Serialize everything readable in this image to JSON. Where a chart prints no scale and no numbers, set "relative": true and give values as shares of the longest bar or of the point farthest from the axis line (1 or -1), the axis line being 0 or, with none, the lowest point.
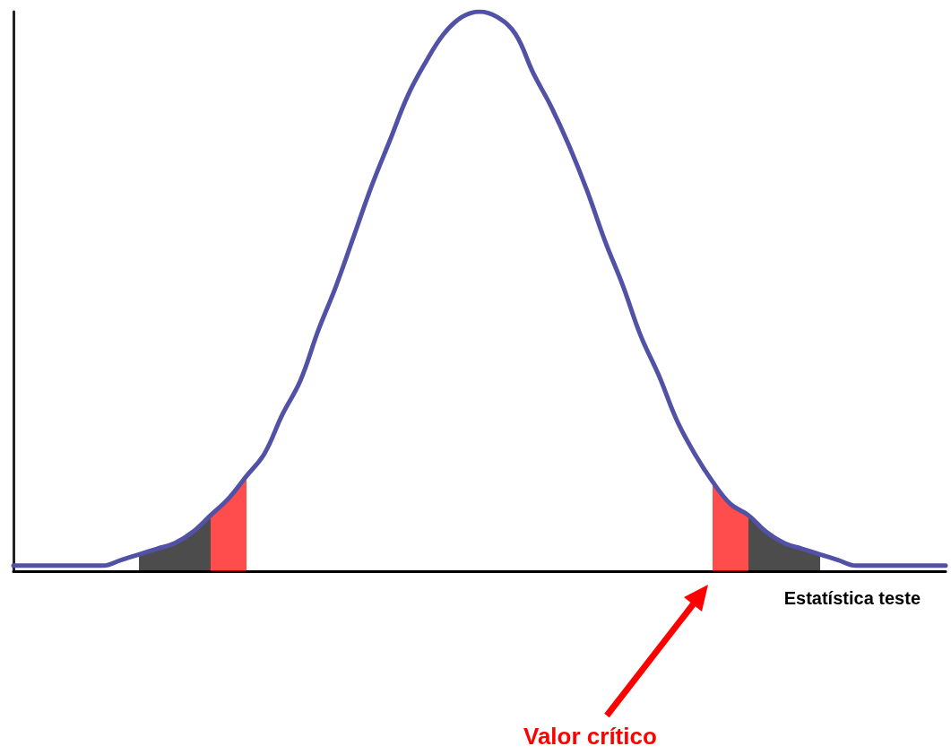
{
  "chart_data": {
    "type": "line",
    "relative": true,
    "xlabel": "Estatística teste",
    "annotations": [
      "Valor crítico"
    ],
    "marker": "none",
    "categories": [
      null,
      null,
      null,
      null,
      null,
      null,
      null,
      null,
      null,
      null,
      null,
      null,
      null,
      null,
      null,
      null,
      null,
      null,
      null,
      null,
      null,
      null,
      null,
      null,
      null,
      null,
      null,
      null,
      null,
      null,
      null,
      null,
      null,
      null,
      null,
      null,
      null,
      null,
      null,
      null,
      null,
      null,
      null,
      null,
      null,
      null,
      null,
      null,
      null,
      null,
      null,
      null,
      null
    ],
    "series": [
      {
        "type": "area",
        "color": "#ff0000",
        "values": [
          null,
          null,
          null,
          null,
          null,
          null,
          null,
          null,
          null,
          null,
          null,
          0.1,
          0.13,
          0.17,
          null,
          null,
          null,
          null,
          null,
          null,
          null,
          null,
          null,
          null,
          null,
          null,
          null,
          null,
          null,
          null,
          null,
          null,
          null,
          null,
          null,
          null,
          null,
          null,
          null,
          0.16,
          0.12,
          0.1,
          null,
          null,
          null,
          null,
          null,
          null,
          null,
          null,
          null,
          null,
          null
        ]
      },
      {
        "type": "area",
        "color": "#000000",
        "values": [
          null,
          null,
          null,
          null,
          null,
          null,
          null,
          0.03,
          0.04,
          0.05,
          0.07,
          0.1,
          null,
          null,
          null,
          null,
          null,
          null,
          null,
          null,
          null,
          null,
          null,
          null,
          null,
          null,
          null,
          null,
          null,
          null,
          null,
          null,
          null,
          null,
          null,
          null,
          null,
          null,
          null,
          null,
          null,
          0.1,
          0.07,
          0.05,
          0.04,
          0.03,
          null,
          null,
          null,
          null,
          null,
          null,
          null
        ]
      },
      {
        "color": "#5151a6",
        "values": [
          0.01,
          0.01,
          0.01,
          0.01,
          0.01,
          0.01,
          0.02,
          0.03,
          0.04,
          0.05,
          0.07,
          0.1,
          0.13,
          0.17,
          0.21,
          0.28,
          0.34,
          0.43,
          0.51,
          0.6,
          0.69,
          0.77,
          0.85,
          0.91,
          0.96,
          0.99,
          1.0,
          0.99,
          0.96,
          0.89,
          0.83,
          0.76,
          0.68,
          0.59,
          0.51,
          0.42,
          0.35,
          0.27,
          0.21,
          0.16,
          0.12,
          0.1,
          0.07,
          0.05,
          0.04,
          0.03,
          0.02,
          0.01,
          0.01,
          0.01,
          0.01,
          0.01,
          0.01
        ]
      }
    ]
  }
}
